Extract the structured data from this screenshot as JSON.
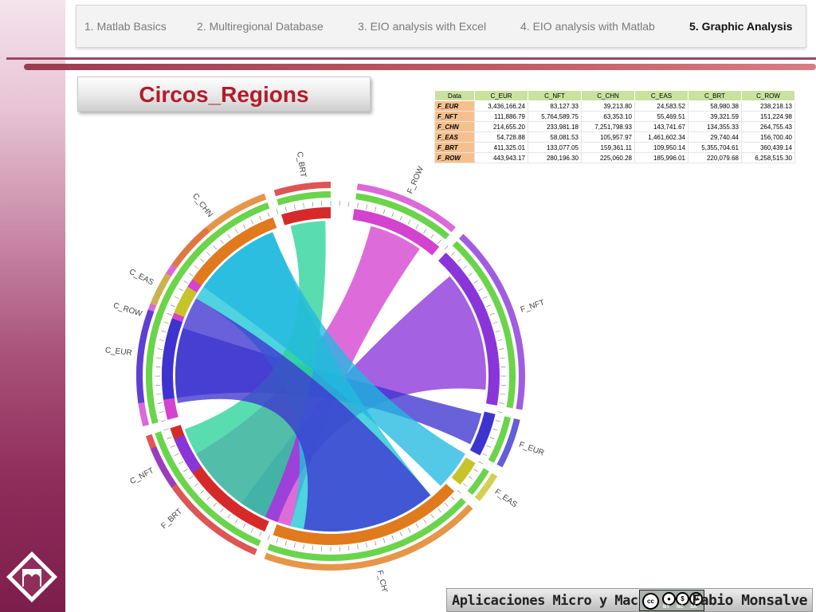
{
  "nav": {
    "tabs": [
      {
        "label": "1. Matlab Basics"
      },
      {
        "label": "2. Multiregional Database"
      },
      {
        "label": "3. EIO analysis with Excel"
      },
      {
        "label": "4. EIO analysis with Matlab"
      },
      {
        "label": "5. Graphic Analysis"
      }
    ],
    "active_tab": "5. Graphic Analysis"
  },
  "page_title": "Circos_Regions",
  "table": {
    "corner": "Data",
    "columns": [
      "C_EUR",
      "C_NFT",
      "C_CHN",
      "C_EAS",
      "C_BRT",
      "C_ROW"
    ],
    "rows": [
      {
        "label": "F_EUR",
        "values": [
          "3,436,166.24",
          "83,127.33",
          "39,213.80",
          "24,583.52",
          "58,980.38",
          "238,218.13"
        ]
      },
      {
        "label": "F_NFT",
        "values": [
          "111,886.79",
          "5,764,589.75",
          "63,353.10",
          "55,469.51",
          "39,321.59",
          "151,224.98"
        ]
      },
      {
        "label": "F_CHN",
        "values": [
          "214,655.20",
          "233,981.18",
          "7,251,798.93",
          "143,741.67",
          "134,355.33",
          "264,755.43"
        ]
      },
      {
        "label": "F_EAS",
        "values": [
          "54,728.88",
          "58,081.53",
          "105,957.97",
          "1,461,602.34",
          "29,740.44",
          "156,700.40"
        ]
      },
      {
        "label": "F_BRT",
        "values": [
          "411,325.01",
          "133,077.05",
          "159,361.11",
          "109,950.14",
          "5,355,704.61",
          "360,439.14"
        ]
      },
      {
        "label": "F_ROW",
        "values": [
          "443,943.17",
          "280,196.30",
          "225,060.28",
          "185,996.01",
          "220,079.68",
          "6,258,515.30"
        ]
      }
    ]
  },
  "circos": {
    "segments": [
      {
        "name": "F_ROW",
        "color": "#d442d0"
      },
      {
        "name": "F_NFT",
        "color": "#8a35d9"
      },
      {
        "name": "F_EUR",
        "color": "#3d34cf"
      },
      {
        "name": "F_EAS",
        "color": "#c7c42a"
      },
      {
        "name": "F_CHN",
        "color": "#e07a1c"
      },
      {
        "name": "F_BRT",
        "color": "#d62a2a"
      },
      {
        "name": "C_ROW",
        "color": "#d442d0"
      },
      {
        "name": "C_NFT",
        "color": "#8a35d9"
      },
      {
        "name": "C_EUR",
        "color": "#3d34cf"
      },
      {
        "name": "C_EAS",
        "color": "#c7c42a"
      },
      {
        "name": "C_CHN",
        "color": "#e07a1c"
      },
      {
        "name": "C_BRT",
        "color": "#d62a2a"
      }
    ]
  },
  "footer": {
    "course": "Aplicaciones Micro y Macro",
    "author": "Fabio Monsalve",
    "license": {
      "cc": "cc",
      "by": "BY",
      "nc": "NC",
      "sa": "SA"
    }
  }
}
